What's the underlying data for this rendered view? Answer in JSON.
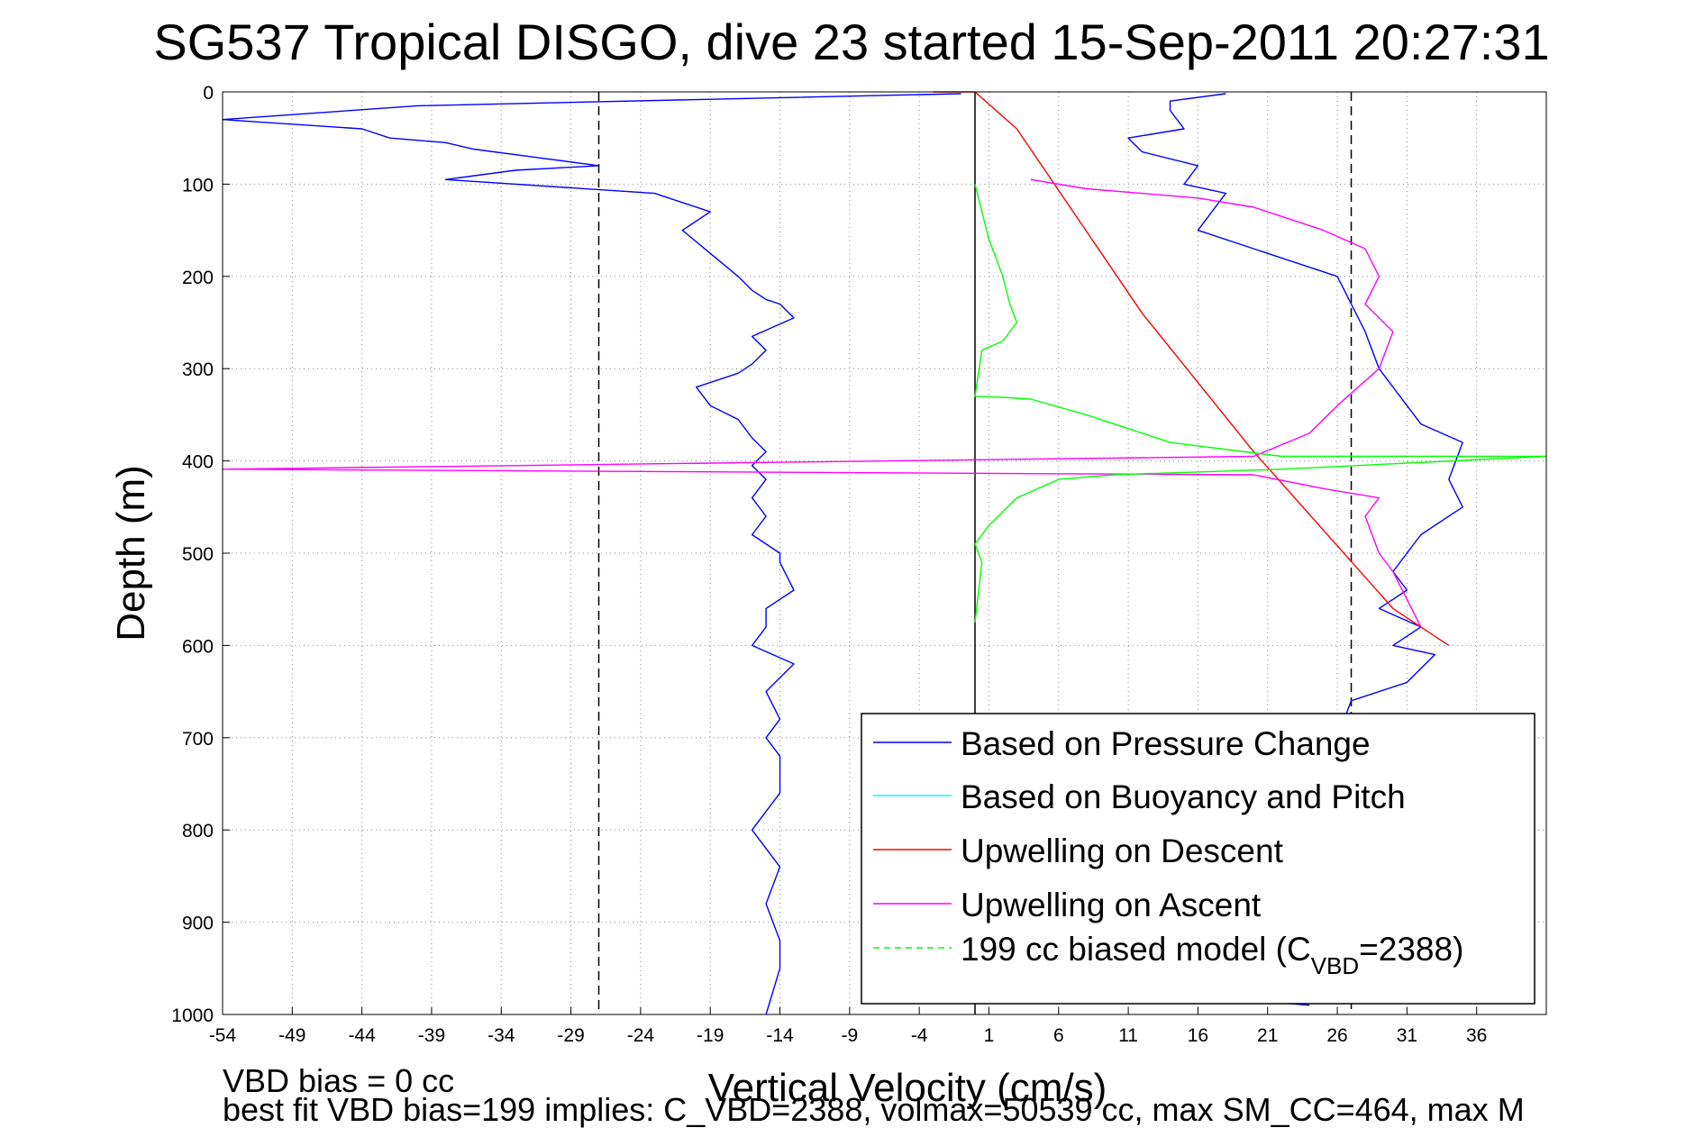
{
  "chart_data": {
    "type": "line",
    "title": "SG537 Tropical DISGO, dive 23 started 15-Sep-2011 20:27:31",
    "xlabel": "Vertical Velocity (cm/s)",
    "ylabel": "Depth (m)",
    "xlim": [
      -54,
      41
    ],
    "ylim": [
      0,
      1000
    ],
    "y_reversed": true,
    "grid": true,
    "legend_position": "bottom-right",
    "x_ticks": [
      -54,
      -49,
      -44,
      -39,
      -34,
      -29,
      -24,
      -19,
      -14,
      -9,
      -4,
      1,
      6,
      11,
      16,
      21,
      26,
      31,
      36
    ],
    "y_ticks": [
      0,
      100,
      200,
      300,
      400,
      500,
      600,
      700,
      800,
      900,
      1000
    ],
    "reference_lines": [
      {
        "x": -27,
        "style": "dashed",
        "color": "#000000"
      },
      {
        "x": 0,
        "style": "solid",
        "color": "#000000"
      },
      {
        "x": 27,
        "style": "dashed",
        "color": "#000000"
      }
    ],
    "series": [
      {
        "name": "Based on Pressure Change",
        "color": "#0000ff",
        "x": [
          -1,
          -40,
          -54,
          -44,
          -42,
          -38,
          -36,
          -32,
          -27,
          -33,
          -38,
          -23,
          -19,
          -21,
          -19,
          -17,
          -16,
          -15,
          -14,
          -13,
          -16,
          -15,
          -16,
          -17,
          -20,
          -19,
          -17,
          -16,
          -15,
          -16,
          -15,
          -16,
          -15,
          -16,
          -14,
          -14,
          -13,
          -15,
          -15,
          -16,
          -13,
          -15,
          -14,
          -15,
          -14,
          -14,
          -14,
          -16,
          -14,
          -15,
          -14,
          -14,
          -15
        ],
        "y": [
          2,
          15,
          30,
          40,
          50,
          55,
          62,
          70,
          80,
          85,
          95,
          110,
          130,
          150,
          175,
          200,
          215,
          225,
          230,
          245,
          265,
          280,
          295,
          305,
          320,
          340,
          355,
          375,
          390,
          405,
          420,
          440,
          460,
          480,
          500,
          510,
          540,
          560,
          580,
          600,
          620,
          650,
          680,
          700,
          720,
          740,
          760,
          800,
          840,
          880,
          920,
          950,
          1000
        ]
      },
      {
        "name": "Based on Pressure Change (ascent)",
        "color": "#0000ff",
        "x": [
          24,
          20,
          16,
          23,
          26,
          30,
          33,
          31,
          33,
          29,
          31,
          28,
          26,
          27,
          31,
          33,
          30,
          32,
          29,
          31,
          30,
          32,
          35,
          34,
          35,
          32,
          30,
          29,
          28,
          26,
          16,
          18,
          15,
          16,
          12,
          11,
          15,
          14,
          14,
          18
        ],
        "y": [
          990,
          985,
          980,
          960,
          930,
          900,
          850,
          820,
          800,
          780,
          760,
          720,
          700,
          660,
          640,
          610,
          600,
          580,
          560,
          540,
          520,
          480,
          450,
          420,
          380,
          360,
          320,
          300,
          260,
          200,
          150,
          110,
          100,
          80,
          65,
          50,
          40,
          20,
          10,
          2
        ]
      },
      {
        "name": "Based on Buoyancy and Pitch",
        "color": "#00ffff",
        "x": [],
        "y": []
      },
      {
        "name": "Upwelling on Descent",
        "color": "#ff0000",
        "x": [
          -3,
          0,
          3,
          12,
          20,
          30,
          34
        ],
        "y": [
          0,
          0,
          40,
          240,
          390,
          560,
          600
        ]
      },
      {
        "name": "Upwelling on Ascent",
        "color": "#ff00ff",
        "x": [
          32,
          30,
          29,
          28,
          29,
          25,
          20,
          -54,
          20,
          24,
          26,
          29,
          30,
          28,
          29,
          28,
          25,
          20,
          16,
          8,
          4
        ],
        "y": [
          580,
          520,
          500,
          460,
          440,
          430,
          415,
          409,
          395,
          370,
          340,
          300,
          260,
          230,
          200,
          170,
          150,
          125,
          115,
          105,
          95
        ]
      },
      {
        "name": "199 cc biased model (C_VBD=2388)",
        "color": "#00ff00",
        "x": [
          0,
          1,
          2,
          2.5,
          3,
          2,
          0.5,
          0,
          2,
          3,
          4,
          8,
          14,
          22,
          41,
          22,
          16,
          10,
          6,
          3,
          1,
          0,
          0.5,
          0
        ],
        "y": [
          100,
          160,
          200,
          230,
          250,
          270,
          280,
          330,
          331,
          332,
          333,
          350,
          380,
          395,
          395,
          409,
          412,
          415,
          420,
          440,
          470,
          490,
          510,
          575
        ]
      }
    ],
    "legend_entries": [
      {
        "label": "Based on Pressure Change",
        "color": "#0000ff",
        "style": "solid"
      },
      {
        "label": "Based on Buoyancy and Pitch",
        "color": "#00ffff",
        "style": "solid"
      },
      {
        "label": "Upwelling on Descent",
        "color": "#ff0000",
        "style": "solid"
      },
      {
        "label": "Upwelling on Ascent",
        "color": "#ff00ff",
        "style": "solid"
      },
      {
        "label": "199 cc biased model (C",
        "sub": "VBD",
        "tail": "=2388)",
        "color": "#00ff00",
        "style": "dashed"
      }
    ]
  },
  "footnotes": {
    "line1": "VBD bias = 0 cc",
    "line2": "best fit VBD bias=199 implies: C_VBD=2388, volmax=50539 cc, max SM_CC=464, max M"
  }
}
